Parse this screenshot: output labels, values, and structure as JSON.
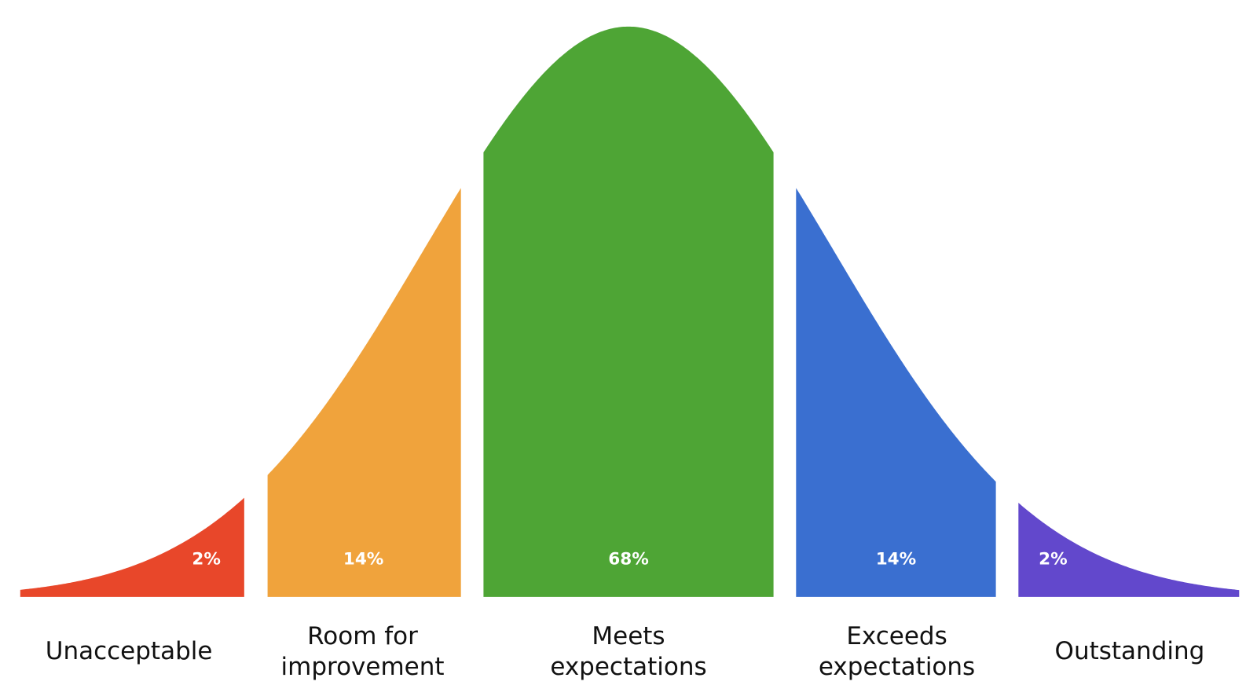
{
  "chart_data": {
    "type": "bell",
    "categories": [
      "Unacceptable",
      "Room for improvement",
      "Meets expectations",
      "Exceeds expectations",
      "Outstanding"
    ],
    "values": [
      2,
      14,
      68,
      14,
      2
    ],
    "value_labels": [
      "2%",
      "14%",
      "68%",
      "14%",
      "2%"
    ],
    "colors": [
      "#e8472a",
      "#f0a33c",
      "#4ea535",
      "#3a6fd0",
      "#6248cc"
    ]
  }
}
